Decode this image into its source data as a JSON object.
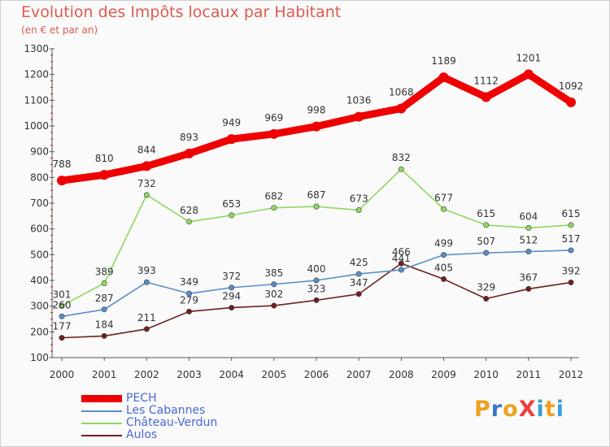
{
  "header": {
    "title": "Evolution des Impôts locaux par Habitant",
    "subtitle": "(en € et par an)"
  },
  "logo": {
    "text": "ProXiti",
    "letters": [
      "P",
      "r",
      "o",
      "X",
      "i",
      "t",
      "i"
    ],
    "colors": [
      "#f0a020",
      "#3a78c8",
      "#f0a020",
      "#e84040",
      "#3a9fd8",
      "#f0a020",
      "#3a9fd8"
    ]
  },
  "chart_data": {
    "type": "line",
    "title": "Evolution des Impôts locaux par Habitant",
    "subtitle": "(en € et par an)",
    "xlabel": "",
    "ylabel": "",
    "ylim": [
      100,
      1300
    ],
    "yticks": [
      100,
      200,
      300,
      400,
      500,
      600,
      700,
      800,
      900,
      1000,
      1100,
      1200,
      1300
    ],
    "x": [
      2000,
      2001,
      2002,
      2003,
      2004,
      2005,
      2006,
      2007,
      2008,
      2009,
      2010,
      2011,
      2012
    ],
    "grid": false,
    "legend_position": "bottom-left",
    "series": [
      {
        "name": "PECH",
        "color": "#ee0000",
        "values": [
          788,
          810,
          844,
          893,
          949,
          969,
          998,
          1036,
          1068,
          1189,
          1112,
          1201,
          1092
        ]
      },
      {
        "name": "Les Cabannes",
        "color": "#5a8fc8",
        "values": [
          260,
          287,
          393,
          349,
          372,
          385,
          400,
          425,
          441,
          499,
          507,
          512,
          517
        ]
      },
      {
        "name": "Château-Verdun",
        "color": "#8ed860",
        "values": [
          301,
          389,
          732,
          628,
          653,
          682,
          687,
          673,
          832,
          677,
          615,
          604,
          615
        ]
      },
      {
        "name": "Aulos",
        "color": "#6e2020",
        "values": [
          177,
          184,
          211,
          279,
          294,
          302,
          323,
          347,
          466,
          405,
          329,
          367,
          392
        ]
      }
    ],
    "labels": [
      {
        "series": 0,
        "text": [
          "788",
          "810",
          "844",
          "893",
          "949",
          "969",
          "998",
          "1036",
          "1068",
          "1189",
          "1112",
          "1201",
          "1092"
        ]
      },
      {
        "series": 1,
        "text": [
          "260",
          "287",
          "393",
          "349",
          "372",
          "385",
          "400",
          "425",
          "441",
          "499",
          "507",
          "512",
          "517"
        ]
      },
      {
        "series": 2,
        "text": [
          "301",
          "389",
          "732",
          "628",
          "653",
          "682",
          "687",
          "673",
          "832",
          "677",
          "615",
          "604",
          "615"
        ]
      },
      {
        "series": 3,
        "text": [
          "177",
          "184",
          "211",
          "279",
          "294",
          "302",
          "323",
          "347",
          "466",
          "405",
          "329",
          "367",
          "392"
        ]
      }
    ]
  }
}
